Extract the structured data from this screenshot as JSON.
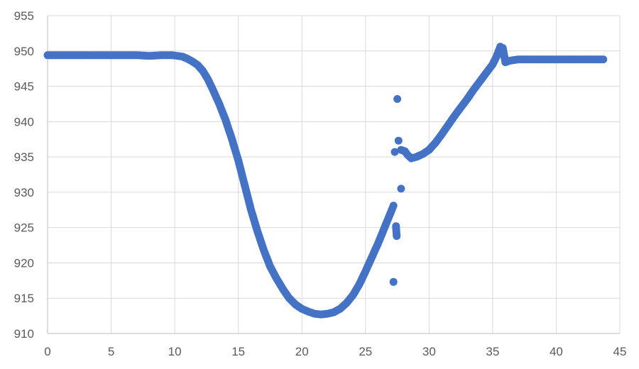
{
  "chart_data": {
    "type": "scatter",
    "title": "",
    "xlabel": "",
    "ylabel": "",
    "xlim": [
      0,
      45
    ],
    "ylim": [
      910,
      955
    ],
    "x_ticks": [
      0,
      5,
      10,
      15,
      20,
      25,
      30,
      35,
      40,
      45
    ],
    "y_ticks": [
      910,
      915,
      920,
      925,
      930,
      935,
      940,
      945,
      950,
      955
    ],
    "grid": true,
    "legend": "none",
    "marker_color": "#4472C4",
    "series": [
      {
        "points": [
          [
            0,
            949.4
          ],
          [
            1,
            949.4
          ],
          [
            2,
            949.4
          ],
          [
            3,
            949.4
          ],
          [
            4,
            949.4
          ],
          [
            5,
            949.4
          ],
          [
            6,
            949.4
          ],
          [
            7,
            949.4
          ],
          [
            8,
            949.3
          ],
          [
            9,
            949.4
          ],
          [
            9.8,
            949.4
          ],
          [
            10.2,
            949.3
          ],
          [
            10.6,
            949.2
          ],
          [
            11,
            948.9
          ],
          [
            11.4,
            948.5
          ],
          [
            11.8,
            948
          ],
          [
            12.2,
            947.2
          ],
          [
            12.6,
            946
          ],
          [
            13,
            944.5
          ],
          [
            13.5,
            942.5
          ],
          [
            14,
            940.2
          ],
          [
            14.5,
            937.5
          ],
          [
            15,
            934.5
          ],
          [
            15.5,
            931
          ],
          [
            16,
            927.5
          ],
          [
            16.5,
            924.5
          ],
          [
            17,
            921.8
          ],
          [
            17.5,
            919.5
          ],
          [
            18,
            917.8
          ],
          [
            18.5,
            916.3
          ],
          [
            19,
            915
          ],
          [
            19.5,
            914.1
          ],
          [
            20,
            913.5
          ],
          [
            20.5,
            913.1
          ],
          [
            21,
            912.8
          ],
          [
            21.5,
            912.7
          ],
          [
            22,
            912.8
          ],
          [
            22.5,
            913
          ],
          [
            23,
            913.5
          ],
          [
            23.5,
            914.3
          ],
          [
            24,
            915.4
          ],
          [
            24.5,
            916.9
          ],
          [
            25,
            918.8
          ],
          [
            25.5,
            920.8
          ],
          [
            26,
            922.8
          ],
          [
            26.5,
            925
          ],
          [
            27,
            927.2
          ],
          [
            27.2,
            928.1
          ],
          [
            27.2,
            917.3
          ],
          [
            27.3,
            935.7
          ],
          [
            27.4,
            925.2
          ],
          [
            27.45,
            923.8
          ],
          [
            27.5,
            943.2
          ],
          [
            27.6,
            937.3
          ],
          [
            27.8,
            930.5
          ],
          [
            27.8,
            936
          ],
          [
            28.1,
            935.8
          ],
          [
            28.3,
            935.3
          ],
          [
            28.6,
            934.8
          ],
          [
            29,
            935
          ],
          [
            29.5,
            935.4
          ],
          [
            30,
            936
          ],
          [
            30.5,
            937
          ],
          [
            31,
            938.2
          ],
          [
            31.5,
            939.5
          ],
          [
            32,
            940.8
          ],
          [
            32.5,
            942
          ],
          [
            33,
            943.2
          ],
          [
            33.5,
            944.5
          ],
          [
            34,
            945.7
          ],
          [
            34.5,
            946.9
          ],
          [
            35,
            948.1
          ],
          [
            35.3,
            949.2
          ],
          [
            35.6,
            950.6
          ],
          [
            35.8,
            950.4
          ],
          [
            36,
            948.4
          ],
          [
            36.3,
            948.6
          ],
          [
            37,
            948.8
          ],
          [
            38,
            948.8
          ],
          [
            39,
            948.8
          ],
          [
            40,
            948.8
          ],
          [
            41,
            948.8
          ],
          [
            42,
            948.8
          ],
          [
            43,
            948.8
          ],
          [
            43.7,
            948.8
          ]
        ]
      }
    ]
  }
}
